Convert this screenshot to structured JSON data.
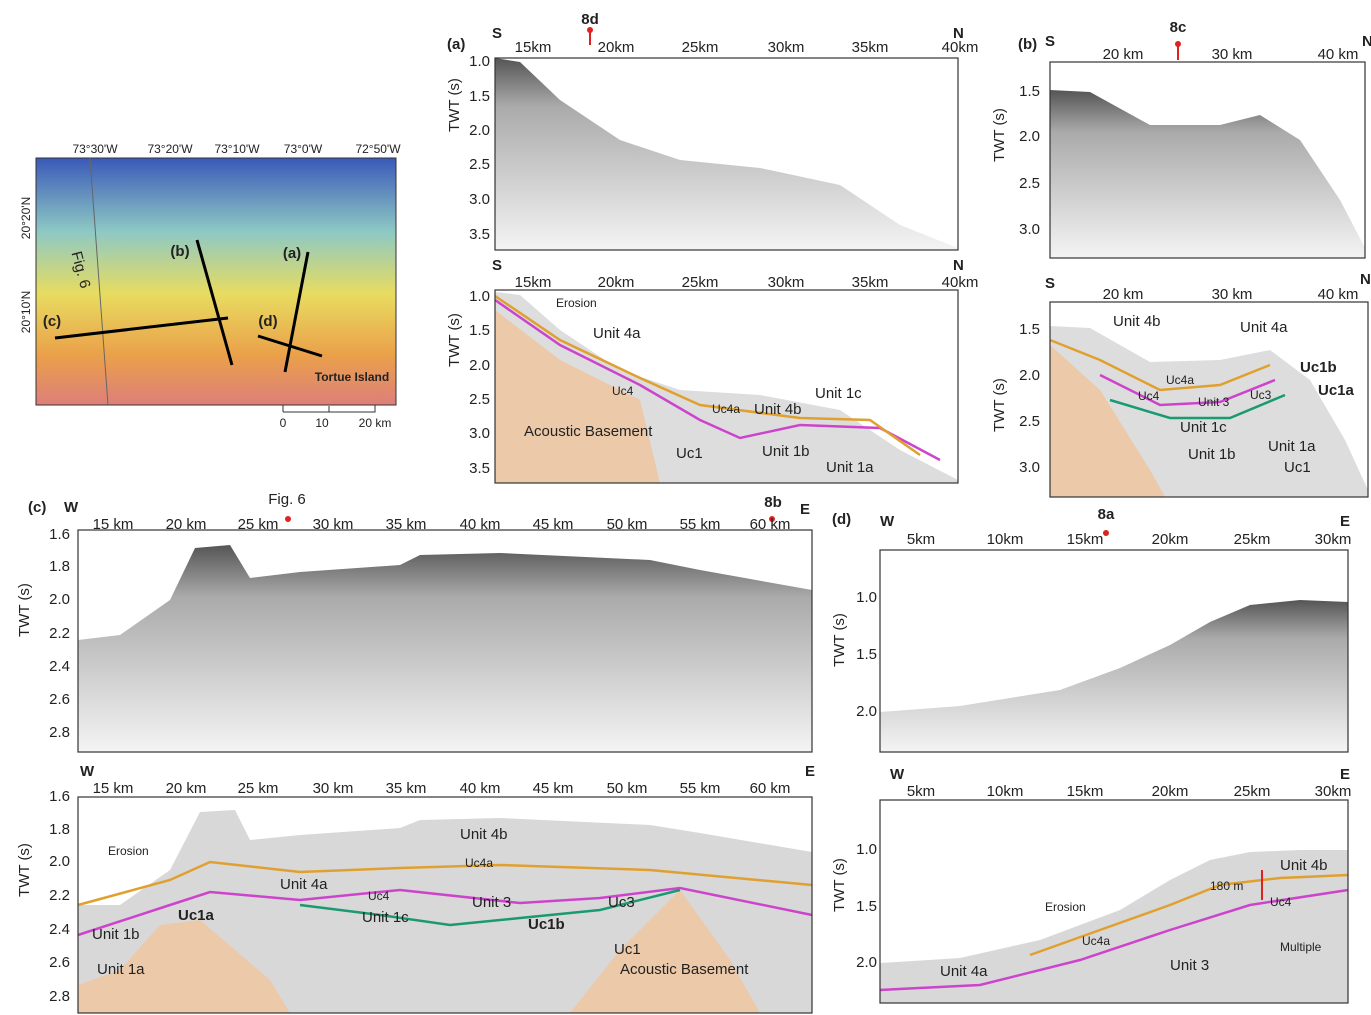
{
  "map": {
    "lon_labels": [
      "73°30'W",
      "73°20'W",
      "73°10'W",
      "73°0'W",
      "72°50'W"
    ],
    "lat_labels": [
      "20°20'N",
      "20°10'N"
    ],
    "line_labels": [
      "(b)",
      "(a)",
      "(c)",
      "(d)"
    ],
    "fig_label": "Fig. 6",
    "island": "Tortue Island",
    "scale": [
      "0",
      "10",
      "20 km"
    ]
  },
  "panel_a": {
    "label": "(a)",
    "left": "S",
    "right": "N",
    "marker": "8d",
    "xticks": [
      "15km",
      "20km",
      "25km",
      "30km",
      "35km",
      "40km"
    ],
    "ytitle": "TWT (s)",
    "yticks": [
      "1.0",
      "1.5",
      "2.0",
      "2.5",
      "3.0",
      "3.5"
    ],
    "units": [
      "Erosion",
      "Unit 4a",
      "Uc4",
      "Uc4a",
      "Unit 4b",
      "Unit 1c",
      "Acoustic Basement",
      "Uc1",
      "Unit 1b",
      "Unit 1a"
    ]
  },
  "panel_b": {
    "label": "(b)",
    "left": "S",
    "right": "N",
    "marker": "8c",
    "xticks": [
      "20 km",
      "30 km",
      "40 km"
    ],
    "ytitle": "TWT (s)",
    "yticks": [
      "1.5",
      "2.0",
      "2.5",
      "3.0"
    ],
    "units": [
      "Unit 4b",
      "Unit 4a",
      "Uc1b",
      "Uc1a",
      "Uc4a",
      "Uc4",
      "Unit 3",
      "Uc3",
      "Unit 1c",
      "Unit 1b",
      "Unit 1a",
      "Uc1"
    ]
  },
  "panel_c": {
    "label": "(c)",
    "left": "W",
    "right": "E",
    "markers": [
      "Fig. 6",
      "8b"
    ],
    "xticks": [
      "15 km",
      "20 km",
      "25 km",
      "30 km",
      "35 km",
      "40 km",
      "45 km",
      "50 km",
      "55 km",
      "60 km"
    ],
    "ytitle": "TWT (s)",
    "yticks": [
      "1.6",
      "1.8",
      "2.0",
      "2.2",
      "2.4",
      "2.6",
      "2.8"
    ],
    "units": [
      "Erosion",
      "Unit 4b",
      "Uc4a",
      "Unit 4a",
      "Uc4",
      "Unit 3",
      "Uc3",
      "Uc1a",
      "Unit 1b",
      "Unit 1c",
      "Uc1b",
      "Unit 1a",
      "Uc1",
      "Acoustic Basement"
    ]
  },
  "panel_d": {
    "label": "(d)",
    "left": "W",
    "right": "E",
    "marker": "8a",
    "xticks": [
      "5km",
      "10km",
      "15km",
      "20km",
      "25km",
      "30km"
    ],
    "ytitle": "TWT (s)",
    "yticks": [
      "1.0",
      "1.5",
      "2.0"
    ],
    "units": [
      "Erosion",
      "Uc4a",
      "Unit 4b",
      "180 m",
      "Uc4",
      "Unit 4a",
      "Unit 3",
      "Multiple"
    ]
  }
}
